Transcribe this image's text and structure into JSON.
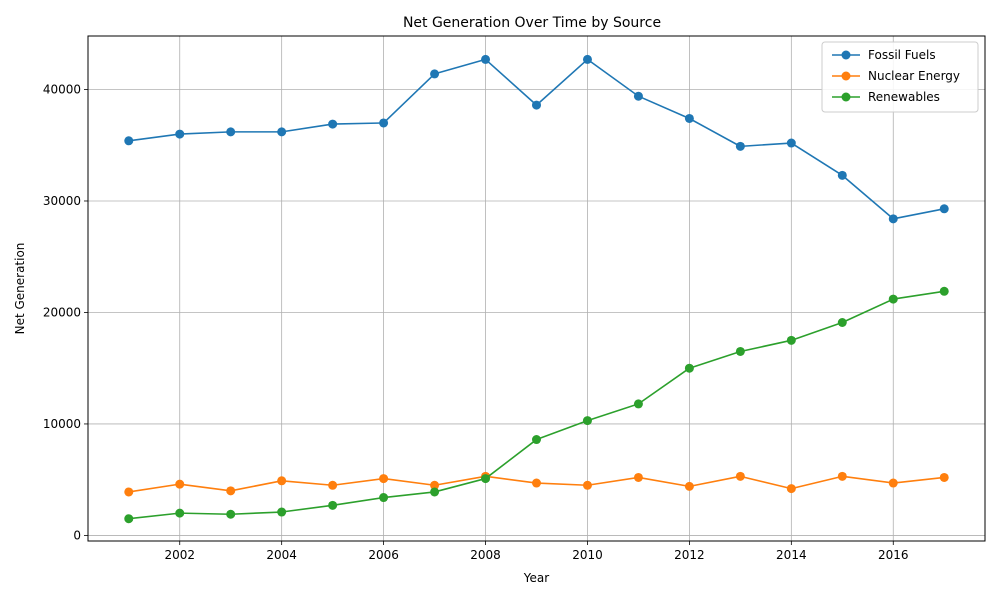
{
  "chart_data": {
    "type": "line",
    "title": "Net Generation Over Time by Source",
    "xlabel": "Year",
    "ylabel": "Net Generation",
    "x": [
      2001,
      2002,
      2003,
      2004,
      2005,
      2006,
      2007,
      2008,
      2009,
      2010,
      2011,
      2012,
      2013,
      2014,
      2015,
      2016,
      2017
    ],
    "xlim": [
      2000.2,
      2017.8
    ],
    "ylim": [
      -500,
      44800
    ],
    "xticks": [
      2002,
      2004,
      2006,
      2008,
      2010,
      2012,
      2014,
      2016
    ],
    "yticks": [
      0,
      10000,
      20000,
      30000,
      40000
    ],
    "grid": true,
    "legend_position": "top-right",
    "series": [
      {
        "name": "Fossil Fuels",
        "color": "#1f77b4",
        "values": [
          35400,
          36000,
          36200,
          36200,
          36900,
          37000,
          41400,
          42700,
          38600,
          42700,
          39400,
          37400,
          34900,
          35200,
          32300,
          28400,
          29300
        ]
      },
      {
        "name": "Nuclear Energy",
        "color": "#ff7f0e",
        "values": [
          3900,
          4600,
          4000,
          4900,
          4500,
          5100,
          4500,
          5300,
          4700,
          4500,
          5200,
          4400,
          5300,
          4200,
          5300,
          4700,
          5200
        ]
      },
      {
        "name": "Renewables",
        "color": "#2ca02c",
        "values": [
          1500,
          2000,
          1900,
          2100,
          2700,
          3400,
          3900,
          5100,
          8600,
          10300,
          11800,
          15000,
          16500,
          17500,
          19100,
          21200,
          21900
        ]
      }
    ]
  }
}
